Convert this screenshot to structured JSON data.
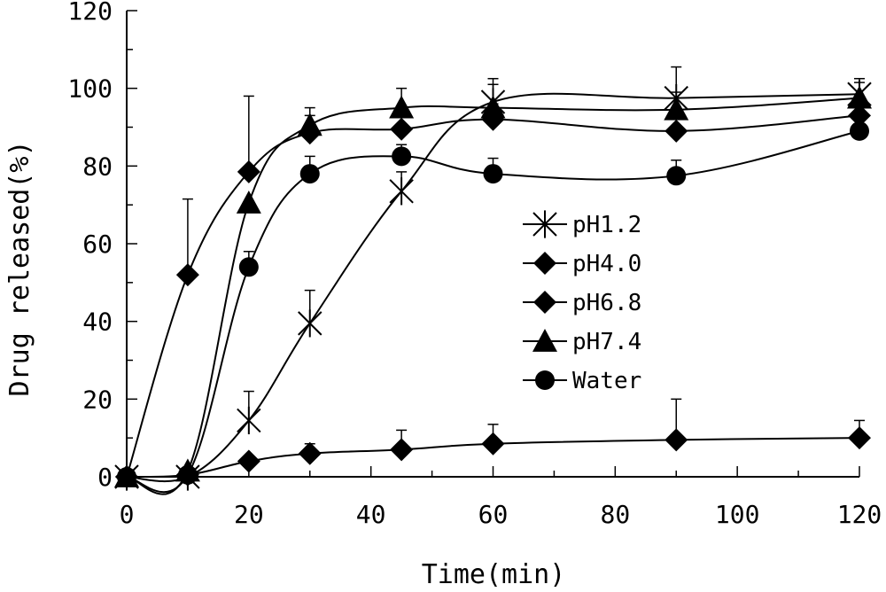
{
  "chart_data": {
    "type": "line",
    "xlabel": "Time(min)",
    "ylabel": "Drug released(%)",
    "xlim": [
      0,
      120
    ],
    "ylim": [
      0,
      120
    ],
    "xticks": [
      0,
      20,
      40,
      60,
      80,
      100,
      120
    ],
    "yticks": [
      0,
      20,
      40,
      60,
      80,
      100,
      120
    ],
    "grid": false,
    "legend_position": "center-right",
    "series": [
      {
        "name": "pH1.2",
        "marker": "asterisk",
        "x": [
          0,
          10,
          20,
          30,
          45,
          60,
          90,
          120
        ],
        "y": [
          0,
          0,
          14.5,
          39.5,
          73.5,
          96.5,
          97.5,
          98.5
        ],
        "err": [
          0,
          0,
          7.5,
          8.5,
          5,
          6,
          8,
          4
        ]
      },
      {
        "name": "pH4.0",
        "marker": "diamond",
        "x": [
          0,
          10,
          20,
          30,
          45,
          60,
          90,
          120
        ],
        "y": [
          0,
          52,
          78.5,
          88.5,
          89.5,
          92,
          89,
          93
        ],
        "err": [
          0,
          19.5,
          19.5,
          4.5,
          3,
          4,
          3,
          3
        ]
      },
      {
        "name": "pH6.8",
        "marker": "diamond",
        "x": [
          0,
          10,
          20,
          30,
          45,
          60,
          90,
          120
        ],
        "y": [
          0,
          0.5,
          4,
          6,
          7,
          8.5,
          9.5,
          10
        ],
        "err": [
          0,
          0,
          0,
          2.5,
          5,
          5,
          10.5,
          4.5
        ]
      },
      {
        "name": "pH7.4",
        "marker": "triangle",
        "x": [
          0,
          10,
          20,
          30,
          45,
          60,
          90,
          120
        ],
        "y": [
          0,
          1.5,
          70.5,
          90.5,
          95,
          95,
          94.5,
          97.5
        ],
        "err": [
          0,
          0,
          0,
          4.5,
          5,
          6,
          4.5,
          4
        ]
      },
      {
        "name": "Water",
        "marker": "circle",
        "x": [
          0,
          10,
          20,
          30,
          45,
          60,
          90,
          120
        ],
        "y": [
          0,
          0.5,
          54,
          78,
          82.5,
          78,
          77.5,
          89
        ],
        "err": [
          0,
          0,
          4,
          4.5,
          3,
          4,
          4,
          3
        ]
      }
    ]
  }
}
